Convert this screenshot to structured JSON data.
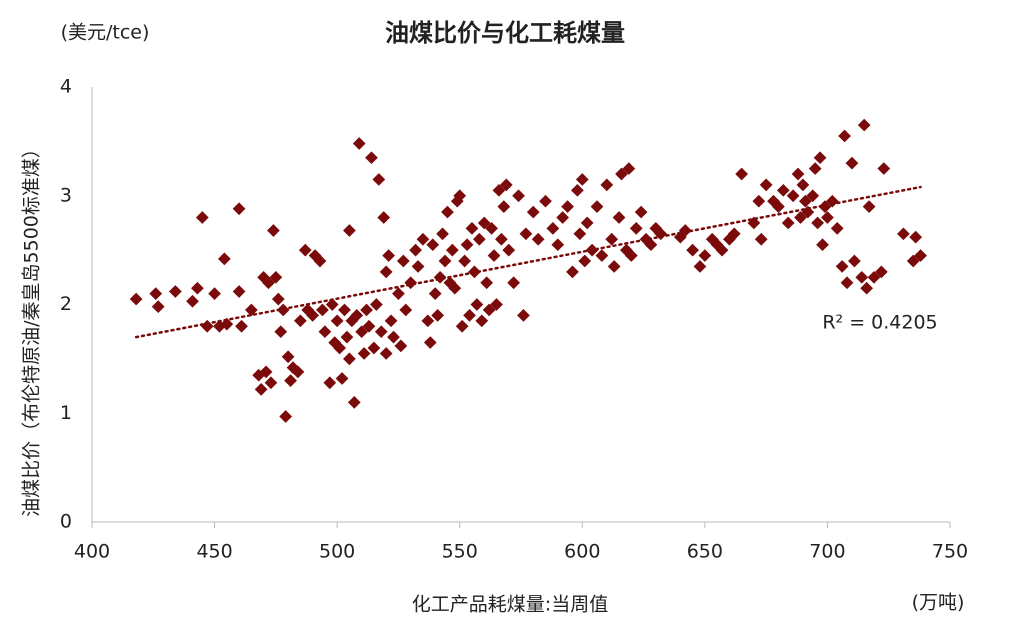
{
  "chart_data": {
    "type": "scatter",
    "title": "油煤比价与化工耗煤量",
    "y_unit": "(美元/tce)",
    "y_label": "油煤比价（布伦特原油/秦皇岛5500标准煤）",
    "x_label": "化工产品耗煤量:当周值",
    "x_unit": "(万吨)",
    "annotation": "R² = 0.4205",
    "xlim": [
      400,
      750
    ],
    "xticks": [
      400,
      450,
      500,
      550,
      600,
      650,
      700,
      750
    ],
    "ylim": [
      0,
      4
    ],
    "yticks": [
      0,
      1,
      2,
      3,
      4
    ],
    "grid": false,
    "series": [
      {
        "color": "#7b0a0a",
        "x": [
          418,
          426,
          427,
          434,
          441,
          443,
          445,
          447,
          450,
          452,
          454,
          455,
          460,
          460,
          461,
          465,
          468,
          469,
          470,
          471,
          472,
          473,
          474,
          475,
          476,
          477,
          478,
          479,
          480,
          481,
          482,
          484,
          485,
          487,
          488,
          490,
          491,
          493,
          494,
          495,
          497,
          498,
          499,
          500,
          501,
          502,
          503,
          504,
          505,
          505,
          506,
          507,
          508,
          509,
          510,
          511,
          512,
          513,
          514,
          515,
          516,
          517,
          518,
          519,
          520,
          520,
          521,
          522,
          523,
          525,
          526,
          527,
          528,
          530,
          532,
          533,
          535,
          537,
          538,
          539,
          540,
          541,
          542,
          543,
          544,
          545,
          546,
          547,
          548,
          549,
          550,
          551,
          552,
          553,
          554,
          555,
          556,
          557,
          558,
          559,
          560,
          561,
          562,
          563,
          564,
          565,
          566,
          567,
          568,
          569,
          570,
          572,
          574,
          576,
          577,
          580,
          582,
          585,
          588,
          590,
          592,
          594,
          596,
          598,
          599,
          600,
          601,
          602,
          604,
          606,
          608,
          610,
          612,
          613,
          615,
          616,
          618,
          619,
          620,
          622,
          624,
          626,
          628,
          630,
          632,
          640,
          642,
          645,
          648,
          650,
          653,
          655,
          657,
          660,
          662,
          665,
          670,
          672,
          673,
          675,
          678,
          680,
          682,
          684,
          686,
          688,
          689,
          690,
          691,
          692,
          694,
          695,
          696,
          697,
          698,
          699,
          700,
          702,
          704,
          706,
          707,
          708,
          710,
          711,
          714,
          715,
          716,
          717,
          719,
          722,
          723,
          731,
          735,
          736,
          738
        ],
        "values": [
          2.05,
          2.1,
          1.98,
          2.12,
          2.03,
          2.15,
          2.8,
          1.8,
          2.1,
          1.8,
          2.42,
          1.82,
          2.12,
          2.88,
          1.8,
          1.95,
          1.35,
          1.22,
          2.25,
          1.38,
          2.2,
          1.28,
          2.68,
          2.25,
          2.05,
          1.75,
          1.95,
          0.97,
          1.52,
          1.3,
          1.42,
          1.38,
          1.85,
          2.5,
          1.95,
          1.9,
          2.45,
          2.4,
          1.95,
          1.75,
          1.28,
          2.0,
          1.65,
          1.85,
          1.6,
          1.32,
          1.95,
          1.7,
          2.68,
          1.5,
          1.85,
          1.1,
          1.9,
          3.48,
          1.75,
          1.55,
          1.95,
          1.8,
          3.35,
          1.6,
          2.0,
          3.15,
          1.75,
          2.8,
          2.3,
          1.55,
          2.45,
          1.85,
          1.7,
          2.1,
          1.62,
          2.4,
          1.95,
          2.2,
          2.5,
          2.35,
          2.6,
          1.85,
          1.65,
          2.55,
          2.1,
          1.9,
          2.25,
          2.65,
          2.4,
          2.85,
          2.2,
          2.5,
          2.15,
          2.95,
          3.0,
          1.8,
          2.4,
          2.55,
          1.9,
          2.7,
          2.3,
          2.0,
          2.6,
          1.85,
          2.75,
          2.2,
          1.95,
          2.7,
          2.45,
          2.0,
          3.05,
          2.6,
          2.9,
          3.1,
          2.5,
          2.2,
          3.0,
          1.9,
          2.65,
          2.85,
          2.6,
          2.95,
          2.7,
          2.55,
          2.8,
          2.9,
          2.3,
          3.05,
          2.65,
          3.15,
          2.4,
          2.75,
          2.5,
          2.9,
          2.45,
          3.1,
          2.6,
          2.35,
          2.8,
          3.2,
          2.5,
          3.25,
          2.45,
          2.7,
          2.85,
          2.6,
          2.55,
          2.7,
          2.65,
          2.62,
          2.68,
          2.5,
          2.35,
          2.45,
          2.6,
          2.55,
          2.5,
          2.6,
          2.65,
          3.2,
          2.75,
          2.95,
          2.6,
          3.1,
          2.95,
          2.9,
          3.05,
          2.75,
          3.0,
          3.2,
          2.8,
          3.1,
          2.95,
          2.85,
          3.0,
          3.25,
          2.75,
          3.35,
          2.55,
          2.9,
          2.8,
          2.95,
          2.7,
          2.35,
          3.55,
          2.2,
          3.3,
          2.4,
          2.25,
          3.65,
          2.15,
          2.9,
          2.25,
          2.3,
          3.25,
          2.65,
          2.4,
          2.62,
          2.45
        ]
      }
    ],
    "trendline": {
      "color": "#7b0a0a",
      "x": [
        418,
        738
      ],
      "values": [
        1.7,
        3.08
      ]
    }
  }
}
